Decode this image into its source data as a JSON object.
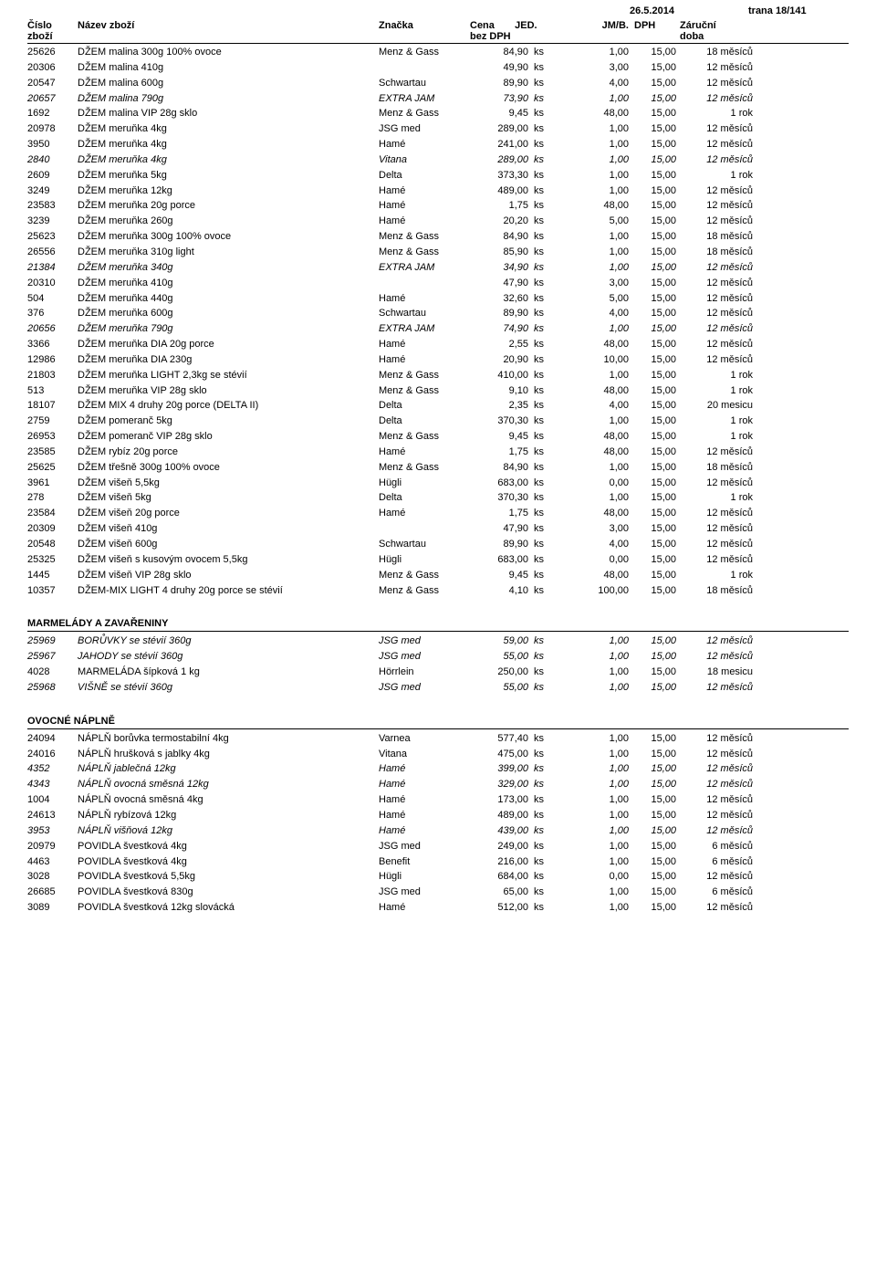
{
  "meta": {
    "date": "26.5.2014",
    "page": "trana 18/141"
  },
  "headers": {
    "cislo1": "Číslo",
    "cislo2": "zboží",
    "nazev": "Název zboží",
    "znacka": "Značka",
    "cena1": "Cena",
    "cena2": "bez DPH",
    "jed": "JED.",
    "jmb": "JM/B.",
    "dph": "DPH",
    "zarucni1": "Záruční",
    "zarucni2": "doba"
  },
  "sections": [
    {
      "title": "",
      "rows": [
        {
          "n": "25626",
          "name": "DŽEM malina 300g 100% ovoce",
          "brand": "Menz & Gass",
          "price": "84,90",
          "unit": "ks",
          "jmb": "1,00",
          "dph": "15,00",
          "war": "18 měsíců",
          "i": false
        },
        {
          "n": "20306",
          "name": "DŽEM malina 410g",
          "brand": "",
          "price": "49,90",
          "unit": "ks",
          "jmb": "3,00",
          "dph": "15,00",
          "war": "12 měsíců",
          "i": false
        },
        {
          "n": "20547",
          "name": "DŽEM malina 600g",
          "brand": "Schwartau",
          "price": "89,90",
          "unit": "ks",
          "jmb": "4,00",
          "dph": "15,00",
          "war": "12 měsíců",
          "i": false
        },
        {
          "n": "20657",
          "name": "DŽEM malina 790g",
          "brand": "EXTRA JAM",
          "price": "73,90",
          "unit": "ks",
          "jmb": "1,00",
          "dph": "15,00",
          "war": "12 měsíců",
          "i": true
        },
        {
          "n": "1692",
          "name": "DŽEM malina VIP 28g sklo",
          "brand": "Menz & Gass",
          "price": "9,45",
          "unit": "ks",
          "jmb": "48,00",
          "dph": "15,00",
          "war": "1 rok",
          "i": false
        },
        {
          "n": "20978",
          "name": "DŽEM meruňka   4kg",
          "brand": "JSG med",
          "price": "289,00",
          "unit": "ks",
          "jmb": "1,00",
          "dph": "15,00",
          "war": "12 měsíců",
          "i": false
        },
        {
          "n": "3950",
          "name": "DŽEM meruňka   4kg",
          "brand": "Hamé",
          "price": "241,00",
          "unit": "ks",
          "jmb": "1,00",
          "dph": "15,00",
          "war": "12 měsíců",
          "i": false
        },
        {
          "n": "2840",
          "name": "DŽEM meruňka   4kg",
          "brand": "Vitana",
          "price": "289,00",
          "unit": "ks",
          "jmb": "1,00",
          "dph": "15,00",
          "war": "12 měsíců",
          "i": true
        },
        {
          "n": "2609",
          "name": "DŽEM meruňka   5kg",
          "brand": "Delta",
          "price": "373,30",
          "unit": "ks",
          "jmb": "1,00",
          "dph": "15,00",
          "war": "1 rok",
          "i": false
        },
        {
          "n": "3249",
          "name": "DŽEM meruňka  12kg",
          "brand": "Hamé",
          "price": "489,00",
          "unit": "ks",
          "jmb": "1,00",
          "dph": "15,00",
          "war": "12 měsíců",
          "i": false
        },
        {
          "n": "23583",
          "name": "DŽEM meruňka 20g porce",
          "brand": "Hamé",
          "price": "1,75",
          "unit": "ks",
          "jmb": "48,00",
          "dph": "15,00",
          "war": "12 měsíců",
          "i": false
        },
        {
          "n": "3239",
          "name": "DŽEM meruňka 260g",
          "brand": "Hamé",
          "price": "20,20",
          "unit": "ks",
          "jmb": "5,00",
          "dph": "15,00",
          "war": "12 měsíců",
          "i": false
        },
        {
          "n": "25623",
          "name": "DŽEM meruňka 300g 100% ovoce",
          "brand": "Menz & Gass",
          "price": "84,90",
          "unit": "ks",
          "jmb": "1,00",
          "dph": "15,00",
          "war": "18 měsíců",
          "i": false
        },
        {
          "n": "26556",
          "name": "DŽEM meruňka 310g light",
          "brand": "Menz & Gass",
          "price": "85,90",
          "unit": "ks",
          "jmb": "1,00",
          "dph": "15,00",
          "war": "18 měsíců",
          "i": false
        },
        {
          "n": "21384",
          "name": "DŽEM meruňka 340g",
          "brand": "EXTRA JAM",
          "price": "34,90",
          "unit": "ks",
          "jmb": "1,00",
          "dph": "15,00",
          "war": "12 měsíců",
          "i": true
        },
        {
          "n": "20310",
          "name": "DŽEM meruňka 410g",
          "brand": "",
          "price": "47,90",
          "unit": "ks",
          "jmb": "3,00",
          "dph": "15,00",
          "war": "12 měsíců",
          "i": false
        },
        {
          "n": "504",
          "name": "DŽEM meruňka 440g",
          "brand": "Hamé",
          "price": "32,60",
          "unit": "ks",
          "jmb": "5,00",
          "dph": "15,00",
          "war": "12 měsíců",
          "i": false
        },
        {
          "n": "376",
          "name": "DŽEM meruňka 600g",
          "brand": "Schwartau",
          "price": "89,90",
          "unit": "ks",
          "jmb": "4,00",
          "dph": "15,00",
          "war": "12 měsíců",
          "i": false
        },
        {
          "n": "20656",
          "name": "DŽEM meruňka 790g",
          "brand": "EXTRA JAM",
          "price": "74,90",
          "unit": "ks",
          "jmb": "1,00",
          "dph": "15,00",
          "war": "12 měsíců",
          "i": true
        },
        {
          "n": "3366",
          "name": "DŽEM meruňka DIA 20g porce",
          "brand": "Hamé",
          "price": "2,55",
          "unit": "ks",
          "jmb": "48,00",
          "dph": "15,00",
          "war": "12 měsíců",
          "i": false
        },
        {
          "n": "12986",
          "name": "DŽEM meruňka DIA 230g",
          "brand": "Hamé",
          "price": "20,90",
          "unit": "ks",
          "jmb": "10,00",
          "dph": "15,00",
          "war": "12 měsíců",
          "i": false
        },
        {
          "n": "21803",
          "name": "DŽEM meruňka LIGHT 2,3kg se stévií",
          "brand": "Menz & Gass",
          "price": "410,00",
          "unit": "ks",
          "jmb": "1,00",
          "dph": "15,00",
          "war": "1 rok",
          "i": false
        },
        {
          "n": "513",
          "name": "DŽEM meruňka VIP 28g sklo",
          "brand": "Menz & Gass",
          "price": "9,10",
          "unit": "ks",
          "jmb": "48,00",
          "dph": "15,00",
          "war": "1 rok",
          "i": false
        },
        {
          "n": "18107",
          "name": "DŽEM MIX 4 druhy 20g porce (DELTA II)",
          "brand": "Delta",
          "price": "2,35",
          "unit": "ks",
          "jmb": "4,00",
          "dph": "15,00",
          "war": "20 mesicu",
          "i": false
        },
        {
          "n": "2759",
          "name": "DŽEM pomeranč  5kg",
          "brand": "Delta",
          "price": "370,30",
          "unit": "ks",
          "jmb": "1,00",
          "dph": "15,00",
          "war": "1 rok",
          "i": false
        },
        {
          "n": "26953",
          "name": "DŽEM pomeranč VIP 28g sklo",
          "brand": "Menz & Gass",
          "price": "9,45",
          "unit": "ks",
          "jmb": "48,00",
          "dph": "15,00",
          "war": "1 rok",
          "i": false
        },
        {
          "n": "23585",
          "name": "DŽEM rybíz 20g porce",
          "brand": "Hamé",
          "price": "1,75",
          "unit": "ks",
          "jmb": "48,00",
          "dph": "15,00",
          "war": "12 měsíců",
          "i": false
        },
        {
          "n": "25625",
          "name": "DŽEM třešně 300g 100% ovoce",
          "brand": "Menz & Gass",
          "price": "84,90",
          "unit": "ks",
          "jmb": "1,00",
          "dph": "15,00",
          "war": "18 měsíců",
          "i": false
        },
        {
          "n": "3961",
          "name": "DŽEM višeň  5,5kg",
          "brand": "Hügli",
          "price": "683,00",
          "unit": "ks",
          "jmb": "0,00",
          "dph": "15,00",
          "war": "12 měsíců",
          "i": false
        },
        {
          "n": "278",
          "name": "DŽEM višeň  5kg",
          "brand": "Delta",
          "price": "370,30",
          "unit": "ks",
          "jmb": "1,00",
          "dph": "15,00",
          "war": "1 rok",
          "i": false
        },
        {
          "n": "23584",
          "name": "DŽEM višeň 20g porce",
          "brand": "Hamé",
          "price": "1,75",
          "unit": "ks",
          "jmb": "48,00",
          "dph": "15,00",
          "war": "12 měsíců",
          "i": false
        },
        {
          "n": "20309",
          "name": "DŽEM višeň 410g",
          "brand": "",
          "price": "47,90",
          "unit": "ks",
          "jmb": "3,00",
          "dph": "15,00",
          "war": "12 měsíců",
          "i": false
        },
        {
          "n": "20548",
          "name": "DŽEM višeň 600g",
          "brand": "Schwartau",
          "price": "89,90",
          "unit": "ks",
          "jmb": "4,00",
          "dph": "15,00",
          "war": "12 měsíců",
          "i": false
        },
        {
          "n": "25325",
          "name": "DŽEM višeň s kusovým ovocem  5,5kg",
          "brand": "Hügli",
          "price": "683,00",
          "unit": "ks",
          "jmb": "0,00",
          "dph": "15,00",
          "war": "12 měsíců",
          "i": false
        },
        {
          "n": "1445",
          "name": "DŽEM višeň VIP 28g sklo",
          "brand": "Menz & Gass",
          "price": "9,45",
          "unit": "ks",
          "jmb": "48,00",
          "dph": "15,00",
          "war": "1 rok",
          "i": false
        },
        {
          "n": "10357",
          "name": "DŽEM-MIX LIGHT 4 druhy 20g porce se stévií",
          "brand": "Menz & Gass",
          "price": "4,10",
          "unit": "ks",
          "jmb": "100,00",
          "dph": "15,00",
          "war": "18 měsíců",
          "i": false
        }
      ]
    },
    {
      "title": "MARMELÁDY A ZAVAŘENINY",
      "rows": [
        {
          "n": "25969",
          "name": "BORŮVKY se stévií 360g",
          "brand": "JSG med",
          "price": "59,00",
          "unit": "ks",
          "jmb": "1,00",
          "dph": "15,00",
          "war": "12 měsíců",
          "i": true
        },
        {
          "n": "25967",
          "name": "JAHODY se stévií 360g",
          "brand": "JSG med",
          "price": "55,00",
          "unit": "ks",
          "jmb": "1,00",
          "dph": "15,00",
          "war": "12 měsíců",
          "i": true
        },
        {
          "n": "4028",
          "name": "MARMELÁDA šípková 1 kg",
          "brand": "Hörrlein",
          "price": "250,00",
          "unit": "ks",
          "jmb": "1,00",
          "dph": "15,00",
          "war": "18 mesicu",
          "i": false
        },
        {
          "n": "25968",
          "name": "VIŠNĚ se stévií 360g",
          "brand": "JSG med",
          "price": "55,00",
          "unit": "ks",
          "jmb": "1,00",
          "dph": "15,00",
          "war": "12 měsíců",
          "i": true
        }
      ]
    },
    {
      "title": "OVOCNÉ NÁPLNĚ",
      "rows": [
        {
          "n": "24094",
          "name": "NÁPLŇ borůvka termostabilní 4kg",
          "brand": "Varnea",
          "price": "577,40",
          "unit": "ks",
          "jmb": "1,00",
          "dph": "15,00",
          "war": "12 měsíců",
          "i": false
        },
        {
          "n": "24016",
          "name": "NÁPLŇ hrušková s jablky 4kg",
          "brand": "Vitana",
          "price": "475,00",
          "unit": "ks",
          "jmb": "1,00",
          "dph": "15,00",
          "war": "12 měsíců",
          "i": false
        },
        {
          "n": "4352",
          "name": "NÁPLŇ jablečná 12kg",
          "brand": "Hamé",
          "price": "399,00",
          "unit": "ks",
          "jmb": "1,00",
          "dph": "15,00",
          "war": "12 měsíců",
          "i": true
        },
        {
          "n": "4343",
          "name": "NÁPLŇ ovocná směsná 12kg",
          "brand": "Hamé",
          "price": "329,00",
          "unit": "ks",
          "jmb": "1,00",
          "dph": "15,00",
          "war": "12 měsíců",
          "i": true
        },
        {
          "n": "1004",
          "name": "NÁPLŇ ovocná směsná 4kg",
          "brand": "Hamé",
          "price": "173,00",
          "unit": "ks",
          "jmb": "1,00",
          "dph": "15,00",
          "war": "12 měsíců",
          "i": false
        },
        {
          "n": "24613",
          "name": "NÁPLŇ rybízová 12kg",
          "brand": "Hamé",
          "price": "489,00",
          "unit": "ks",
          "jmb": "1,00",
          "dph": "15,00",
          "war": "12 měsíců",
          "i": false
        },
        {
          "n": "3953",
          "name": "NÁPLŇ višňová 12kg",
          "brand": "Hamé",
          "price": "439,00",
          "unit": "ks",
          "jmb": "1,00",
          "dph": "15,00",
          "war": "12 měsíců",
          "i": true
        },
        {
          "n": "20979",
          "name": "POVIDLA švestková  4kg",
          "brand": "JSG med",
          "price": "249,00",
          "unit": "ks",
          "jmb": "1,00",
          "dph": "15,00",
          "war": "6 měsíců",
          "i": false
        },
        {
          "n": "4463",
          "name": "POVIDLA švestková  4kg",
          "brand": "Benefit",
          "price": "216,00",
          "unit": "ks",
          "jmb": "1,00",
          "dph": "15,00",
          "war": "6 měsíců",
          "i": false
        },
        {
          "n": "3028",
          "name": "POVIDLA švestková  5,5kg",
          "brand": "Hügli",
          "price": "684,00",
          "unit": "ks",
          "jmb": "0,00",
          "dph": "15,00",
          "war": "12 měsíců",
          "i": false
        },
        {
          "n": "26685",
          "name": "POVIDLA švestková  830g",
          "brand": "JSG med",
          "price": "65,00",
          "unit": "ks",
          "jmb": "1,00",
          "dph": "15,00",
          "war": "6 měsíců",
          "i": false
        },
        {
          "n": "3089",
          "name": "POVIDLA švestková 12kg slovácká",
          "brand": "Hamé",
          "price": "512,00",
          "unit": "ks",
          "jmb": "1,00",
          "dph": "15,00",
          "war": "12 měsíců",
          "i": false
        }
      ]
    }
  ]
}
